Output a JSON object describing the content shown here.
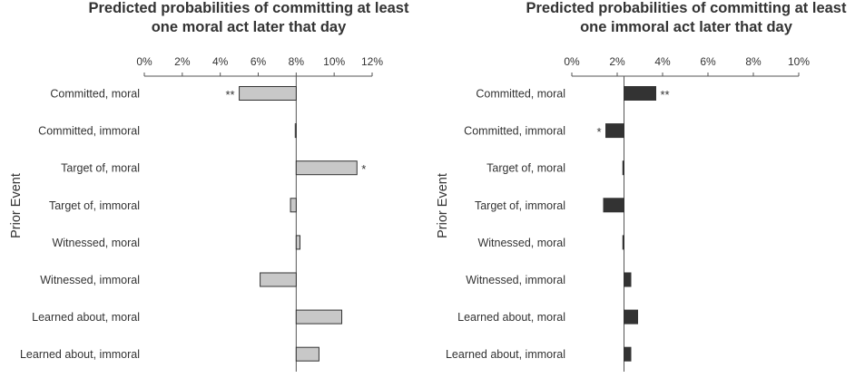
{
  "chart_data": [
    {
      "type": "bar",
      "orientation": "horizontal",
      "title_lines": [
        "Predicted probabilities of committing at least",
        "one moral act later that day"
      ],
      "ylabel": "Prior Event",
      "xlim": [
        0,
        12
      ],
      "x_ticks": [
        "0%",
        "2%",
        "4%",
        "6%",
        "8%",
        "10%",
        "12%"
      ],
      "baseline": 8.0,
      "bar_color": "#c8c8c8",
      "categories": [
        "Committed, moral",
        "Committed, immoral",
        "Target of, moral",
        "Target of, immoral",
        "Witnessed, moral",
        "Witnessed, immoral",
        "Learned about, moral",
        "Learned about, immoral"
      ],
      "values": [
        5.0,
        7.95,
        11.2,
        7.7,
        8.2,
        6.1,
        10.4,
        9.2
      ],
      "significance": [
        "**",
        "",
        "*",
        "",
        "",
        "",
        "",
        ""
      ]
    },
    {
      "type": "bar",
      "orientation": "horizontal",
      "title_lines": [
        "Predicted probabilities of committing at least",
        "one immoral act later that day"
      ],
      "ylabel": "Prior Event",
      "xlim": [
        0,
        10
      ],
      "x_ticks": [
        "0%",
        "2%",
        "4%",
        "6%",
        "8%",
        "10%"
      ],
      "baseline": 2.3,
      "bar_color": "#333333",
      "categories": [
        "Committed, moral",
        "Committed, immoral",
        "Target of, moral",
        "Target of, immoral",
        "Witnessed, moral",
        "Witnessed, immoral",
        "Learned about, moral",
        "Learned about, immoral"
      ],
      "values": [
        3.7,
        1.5,
        2.25,
        1.4,
        2.25,
        2.6,
        2.9,
        2.6
      ],
      "significance": [
        "**",
        "*",
        "",
        "",
        "",
        "",
        "",
        ""
      ]
    }
  ]
}
